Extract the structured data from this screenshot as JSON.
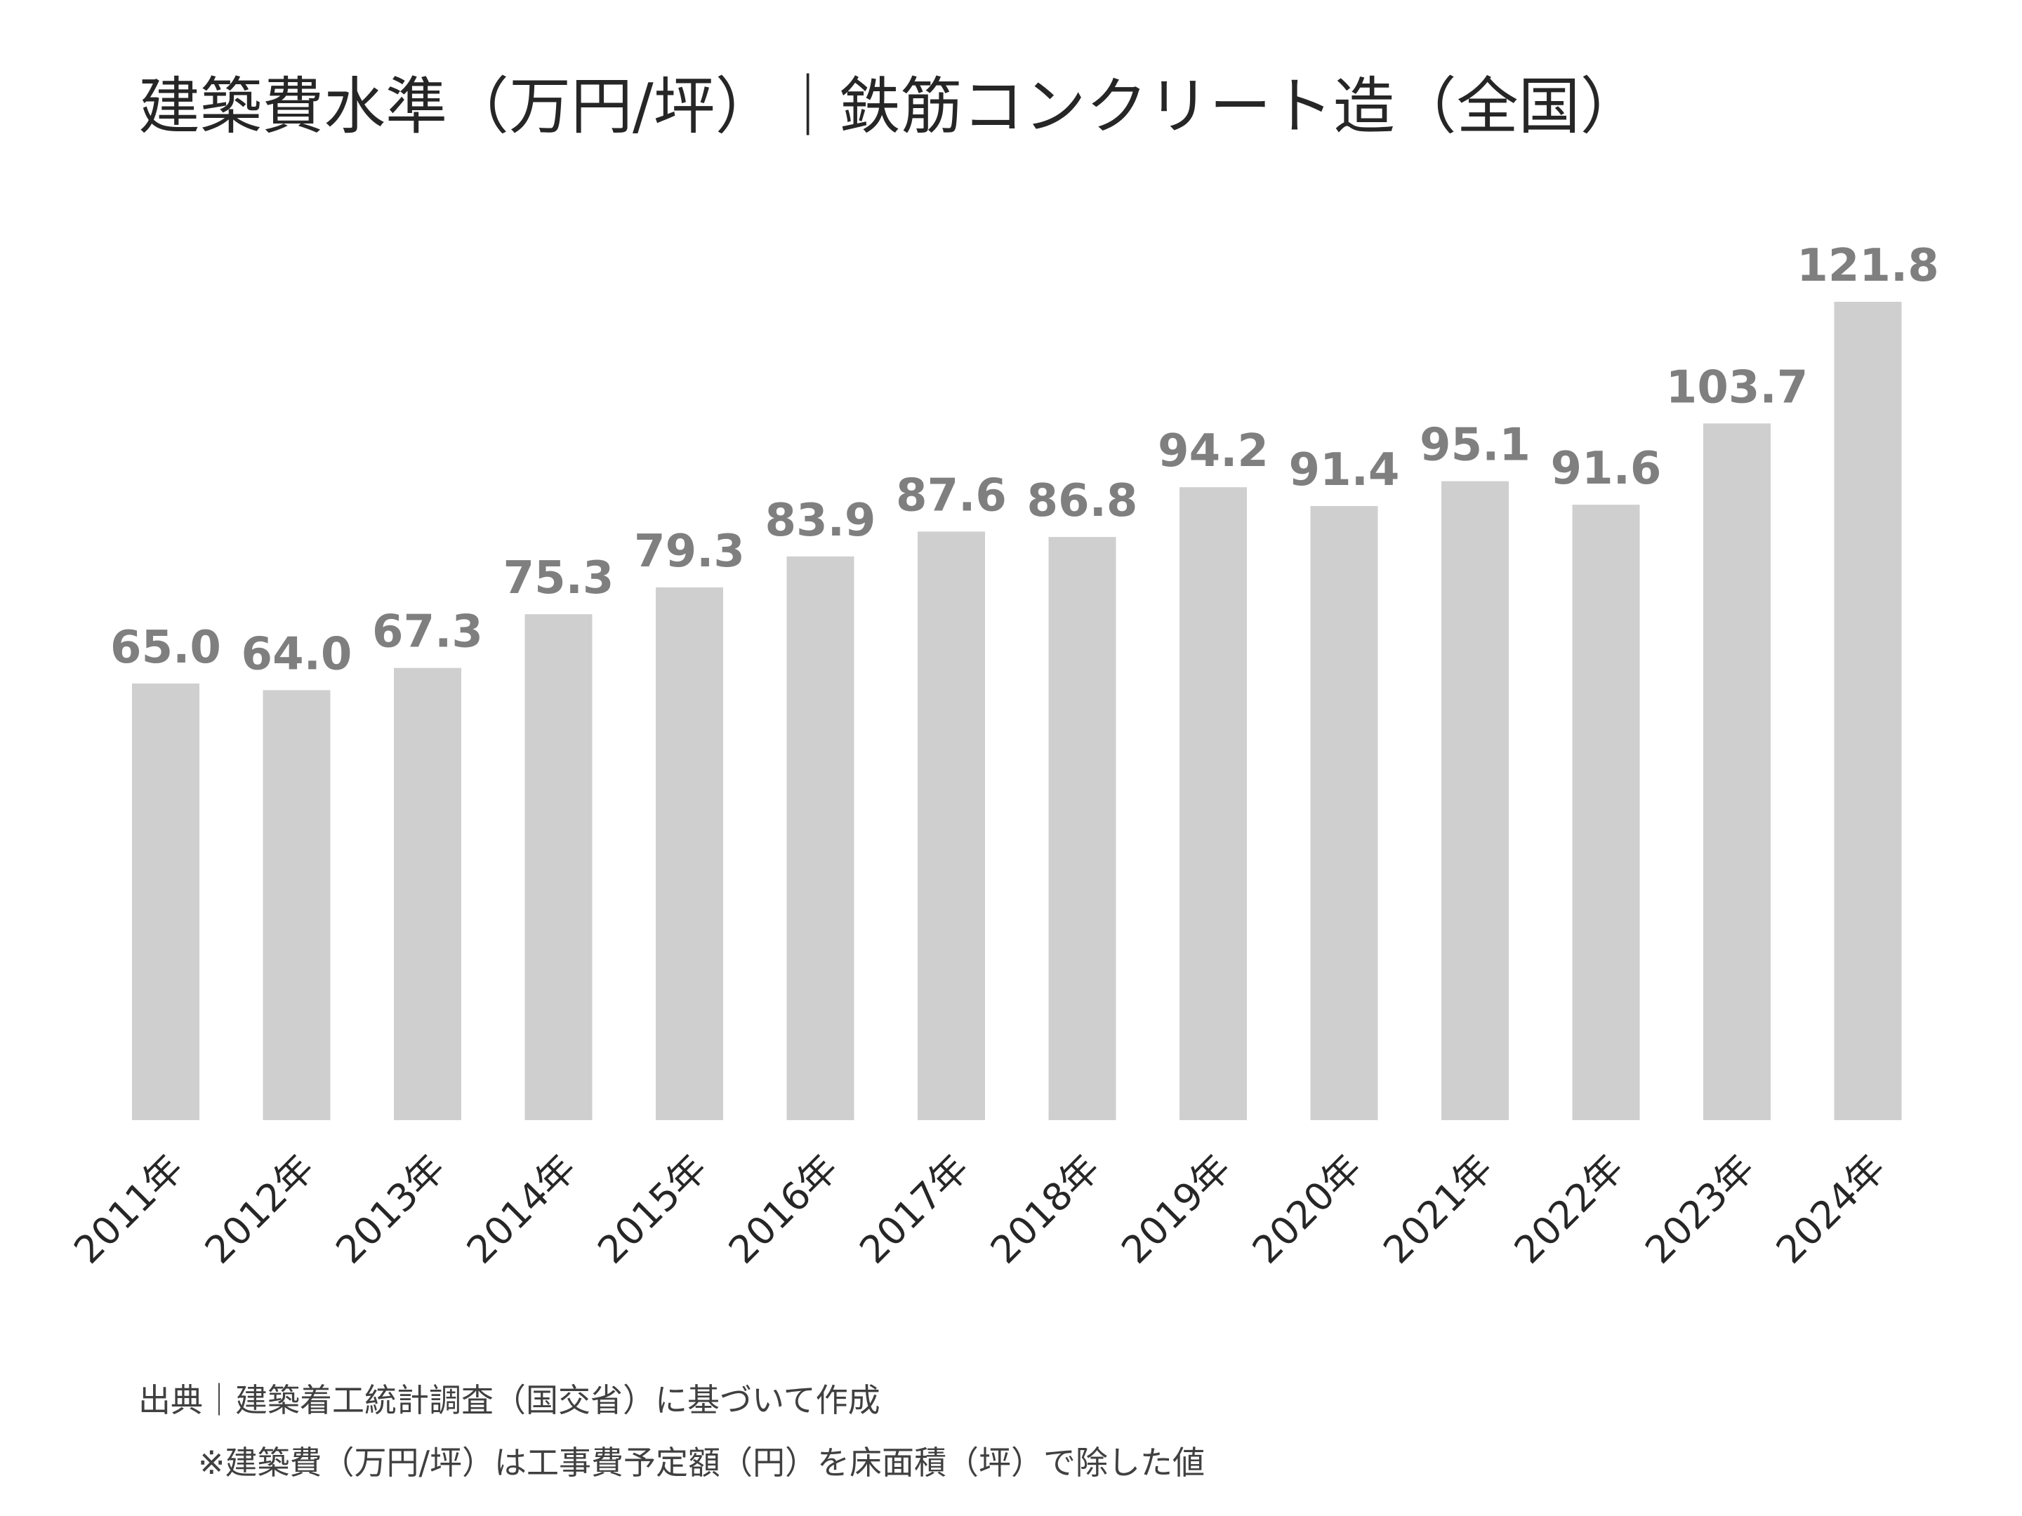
{
  "chart_data": {
    "type": "bar",
    "title": "建築費水準（万円/坪）｜鉄筋コンクリート造（全国）",
    "categories": [
      "2011年",
      "2012年",
      "2013年",
      "2014年",
      "2015年",
      "2016年",
      "2017年",
      "2018年",
      "2019年",
      "2020年",
      "2021年",
      "2022年",
      "2023年",
      "2024年"
    ],
    "values": [
      65.0,
      64.0,
      67.3,
      75.3,
      79.3,
      83.9,
      87.6,
      86.8,
      94.2,
      91.4,
      95.1,
      91.6,
      103.7,
      121.8
    ],
    "value_labels": [
      "65.0",
      "64.0",
      "67.3",
      "75.3",
      "79.3",
      "83.9",
      "87.6",
      "86.8",
      "94.2",
      "91.4",
      "95.1",
      "91.6",
      "103.7",
      "121.8"
    ],
    "xlabel": "",
    "ylabel": "",
    "ylim": [
      0,
      121.8
    ],
    "grid": false,
    "legend": "none",
    "colors": {
      "bar": "#d0cfd0",
      "value_label": "#7f7f7f",
      "text": "#262626",
      "note": "#404040"
    }
  },
  "notes": {
    "source": "出典｜建築着工統計調査（国交省）に基づいて作成",
    "definition": "※建築費（万円/坪）は工事費予定額（円）を床面積（坪）で除した値"
  }
}
